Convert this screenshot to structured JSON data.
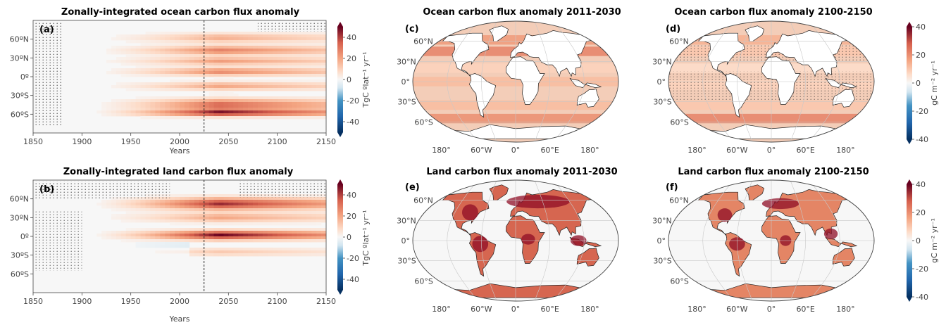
{
  "colors": {
    "neg": "#053061",
    "mid": "#f7f7f7",
    "pos": "#67001f",
    "land": "#ffffff",
    "coast": "#222222",
    "grid": "#cfcfcf"
  },
  "chart_data": [
    {
      "type": "heatmap",
      "panel": "(a)",
      "title": "Zonally-integrated ocean carbon flux anomaly",
      "xlabel": "Years",
      "xlim": [
        1850,
        2150
      ],
      "xticks": [
        1850,
        1900,
        1950,
        2000,
        2050,
        2100,
        2150
      ],
      "ylim": [
        -90,
        90
      ],
      "yticks": [
        {
          "label": "60ºN",
          "lat": 60
        },
        {
          "label": "30ºN",
          "lat": 30
        },
        {
          "label": "0º",
          "lat": 0
        },
        {
          "label": "30ºS",
          "lat": -30
        },
        {
          "label": "60ºS",
          "lat": -60
        }
      ],
      "divider_year": 2025,
      "bands": [
        {
          "lat": 62,
          "width": 7,
          "amp": 18
        },
        {
          "lat": 42,
          "width": 7,
          "amp": 28
        },
        {
          "lat": 25,
          "width": 6,
          "amp": 22
        },
        {
          "lat": 8,
          "width": 6,
          "amp": 26
        },
        {
          "lat": -15,
          "width": 6,
          "amp": 20
        },
        {
          "lat": -45,
          "width": 9,
          "amp": 34
        },
        {
          "lat": -58,
          "width": 5,
          "amp": 46
        }
      ],
      "peak_year": 2040,
      "colorbar": {
        "label": "TgC ºlat⁻¹ yr⁻¹",
        "ticks": [
          40,
          20,
          0,
          -20,
          -40
        ],
        "range": [
          -50,
          50
        ]
      }
    },
    {
      "type": "heatmap",
      "panel": "(b)",
      "title": "Zonally-integrated land carbon flux anomaly",
      "xlabel": "Years",
      "xlim": [
        1850,
        2150
      ],
      "xticks": [
        1850,
        1900,
        1950,
        2000,
        2050,
        2100,
        2150
      ],
      "ylim": [
        -90,
        90
      ],
      "yticks": [
        {
          "label": "60ºN",
          "lat": 60
        },
        {
          "label": "30ºN",
          "lat": 30
        },
        {
          "label": "0º",
          "lat": 0
        },
        {
          "label": "30ºS",
          "lat": -30
        },
        {
          "label": "60ºS",
          "lat": -60
        }
      ],
      "divider_year": 2025,
      "bands": [
        {
          "lat": 52,
          "width": 9,
          "amp": 44
        },
        {
          "lat": 30,
          "width": 7,
          "amp": 20
        },
        {
          "lat": 2,
          "width": 7,
          "amp": 50
        },
        {
          "lat": -25,
          "width": 6,
          "amp": 12
        }
      ],
      "peak_year": 2040,
      "colorbar": {
        "label": "TgC ºlat⁻¹ yr⁻¹",
        "ticks": [
          40,
          20,
          0,
          -20,
          -40
        ],
        "range": [
          -50,
          50
        ]
      }
    },
    {
      "type": "heatmap",
      "panel": "(c)",
      "title": "Ocean carbon flux anomaly 2011-2030",
      "map": "ocean",
      "period": "2011-2030",
      "lat_labels": [
        "60°N",
        "30°N",
        "0°",
        "30°S",
        "60°S"
      ],
      "lon_labels": [
        "180°",
        "60°W",
        "0°",
        "60°E",
        "180°"
      ]
    },
    {
      "type": "heatmap",
      "panel": "(d)",
      "title": "Ocean carbon flux anomaly 2100-2150",
      "map": "ocean",
      "period": "2100-2150",
      "lat_labels": [
        "60°N",
        "30°N",
        "0°",
        "30°S",
        "60°S"
      ],
      "lon_labels": [
        "180°",
        "60°W",
        "0°",
        "60°E",
        "180°"
      ],
      "colorbar": {
        "label": "gC m⁻² yr⁻¹",
        "ticks": [
          40,
          20,
          0,
          -20,
          -40
        ],
        "range": [
          -40,
          40
        ]
      }
    },
    {
      "type": "heatmap",
      "panel": "(e)",
      "title": "Land carbon flux anomaly 2011-2030",
      "map": "land",
      "period": "2011-2030",
      "lat_labels": [
        "60°N",
        "30°N",
        "0°",
        "30°S",
        "60°S"
      ],
      "lon_labels": [
        "180°",
        "60°W",
        "0°",
        "60°E",
        "180°"
      ]
    },
    {
      "type": "heatmap",
      "panel": "(f)",
      "title": "Land carbon flux anomaly 2100-2150",
      "map": "land",
      "period": "2100-2150",
      "lat_labels": [
        "60°N",
        "30°N",
        "0°",
        "30°S",
        "60°S"
      ],
      "lon_labels": [
        "180°",
        "60°W",
        "0°",
        "60°E",
        "180°"
      ],
      "colorbar": {
        "label": "gC m⁻² yr⁻¹",
        "ticks": [
          40,
          20,
          0,
          -20,
          -40
        ],
        "range": [
          -40,
          40
        ]
      }
    }
  ]
}
